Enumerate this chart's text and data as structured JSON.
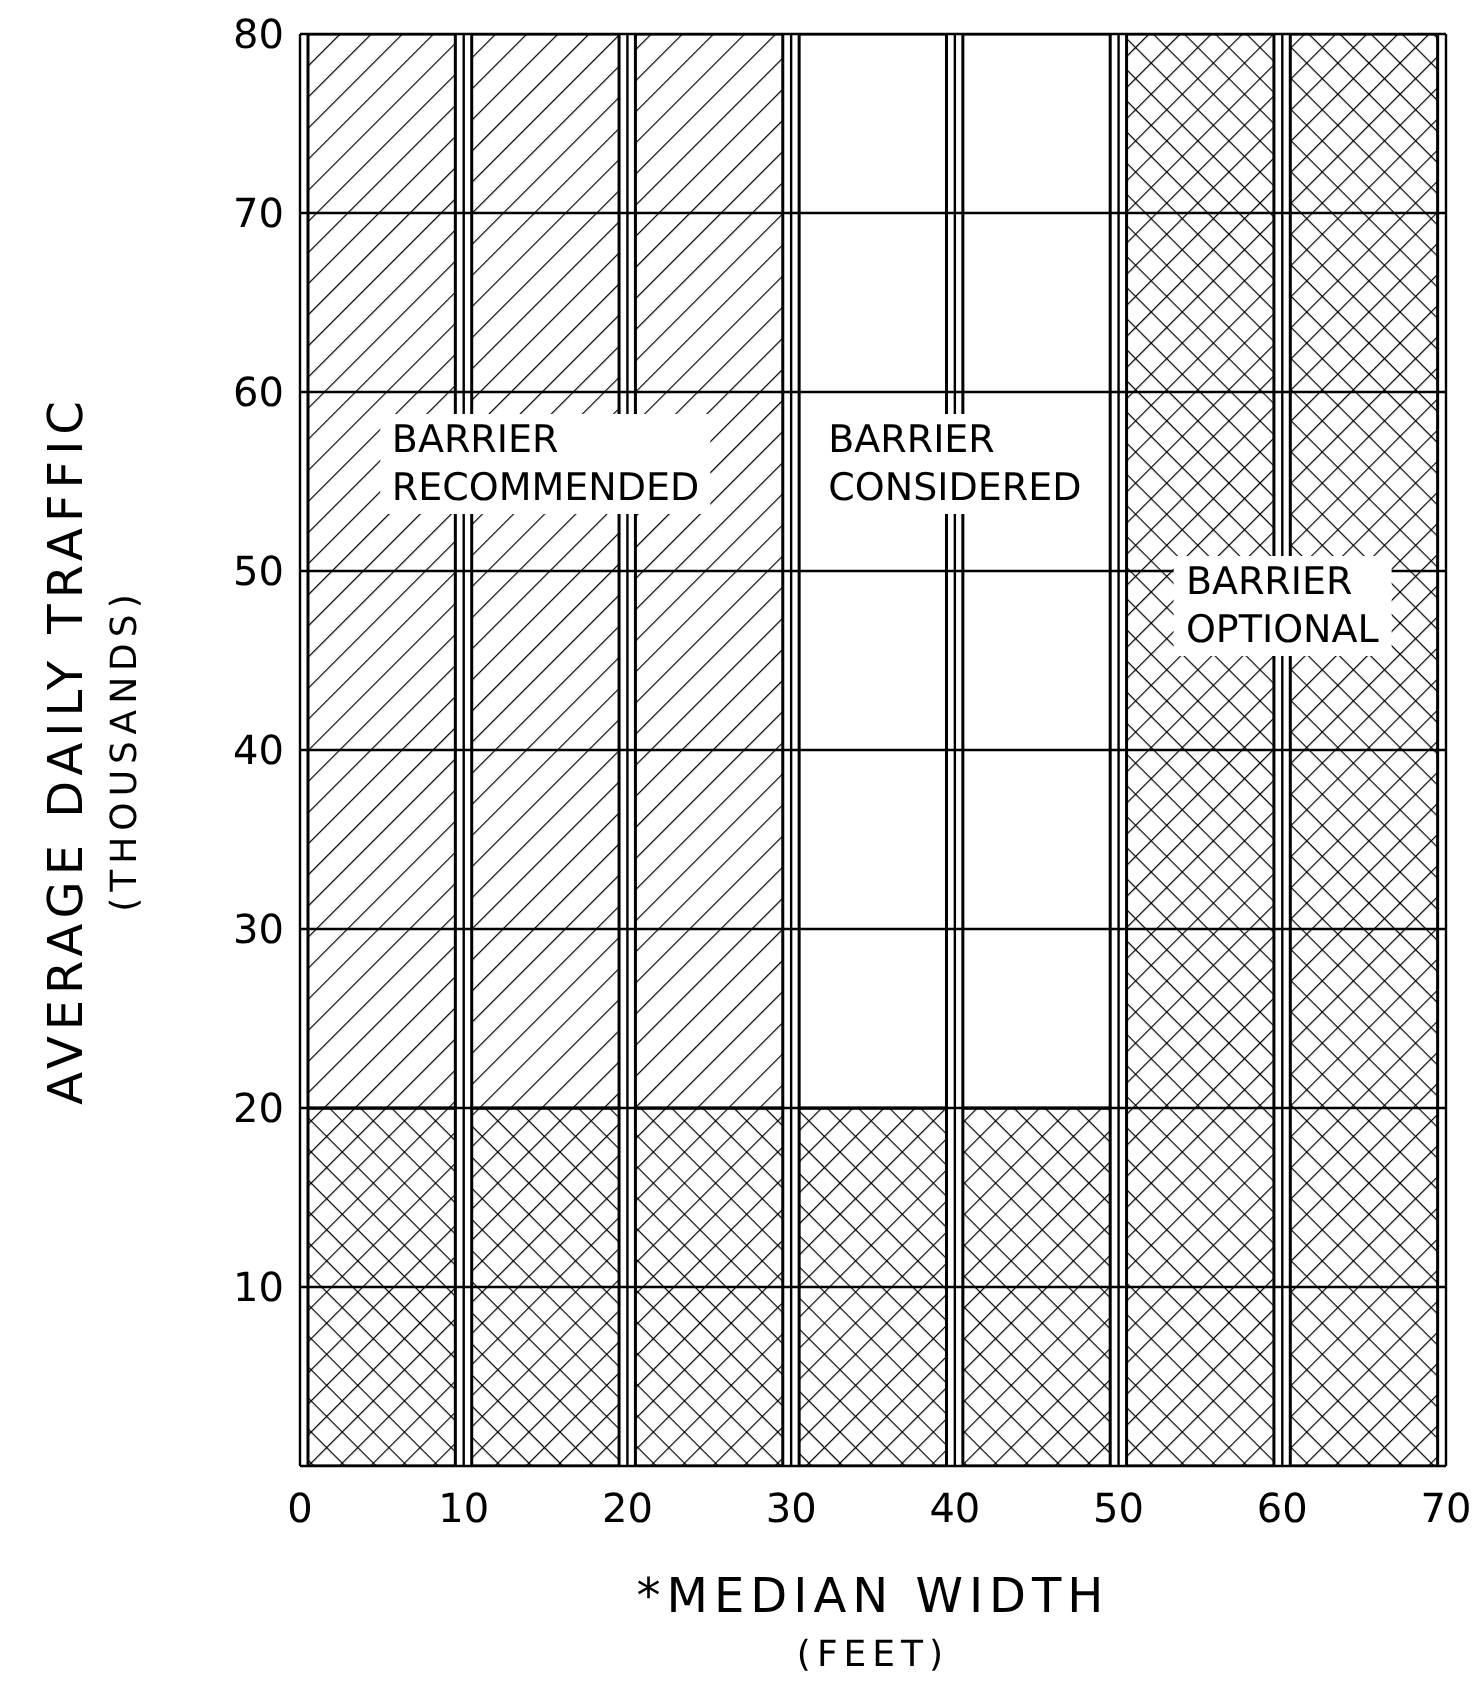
{
  "chart_data": {
    "type": "bar",
    "stacked": true,
    "xlabel": "*MEDIAN WIDTH\n(FEET)",
    "ylabel": "AVERAGE DAILY TRAFFIC\n(THOUSANDS)",
    "x": [
      5,
      15,
      25,
      35,
      45,
      55,
      65
    ],
    "series": [
      {
        "name": "BARRIER OPTIONAL",
        "color": "#000000",
        "values": [
          20,
          20,
          20,
          20,
          20,
          80,
          80
        ]
      },
      {
        "name": "BARRIER RECOMMENDED",
        "color": "#000000",
        "values": [
          60,
          60,
          60,
          null,
          null,
          null,
          null
        ]
      },
      {
        "name": "BARRIER CONSIDERED",
        "color": "#ffffff",
        "values": [
          null,
          null,
          null,
          60,
          60,
          null,
          null
        ]
      }
    ],
    "xlim": [
      0,
      70
    ],
    "xticks": [
      0,
      10,
      20,
      30,
      40,
      50,
      60,
      70
    ],
    "ylim": [
      0,
      80
    ],
    "yticks": [
      10,
      20,
      30,
      40,
      50,
      60,
      70,
      80
    ],
    "grid": true
  }
}
